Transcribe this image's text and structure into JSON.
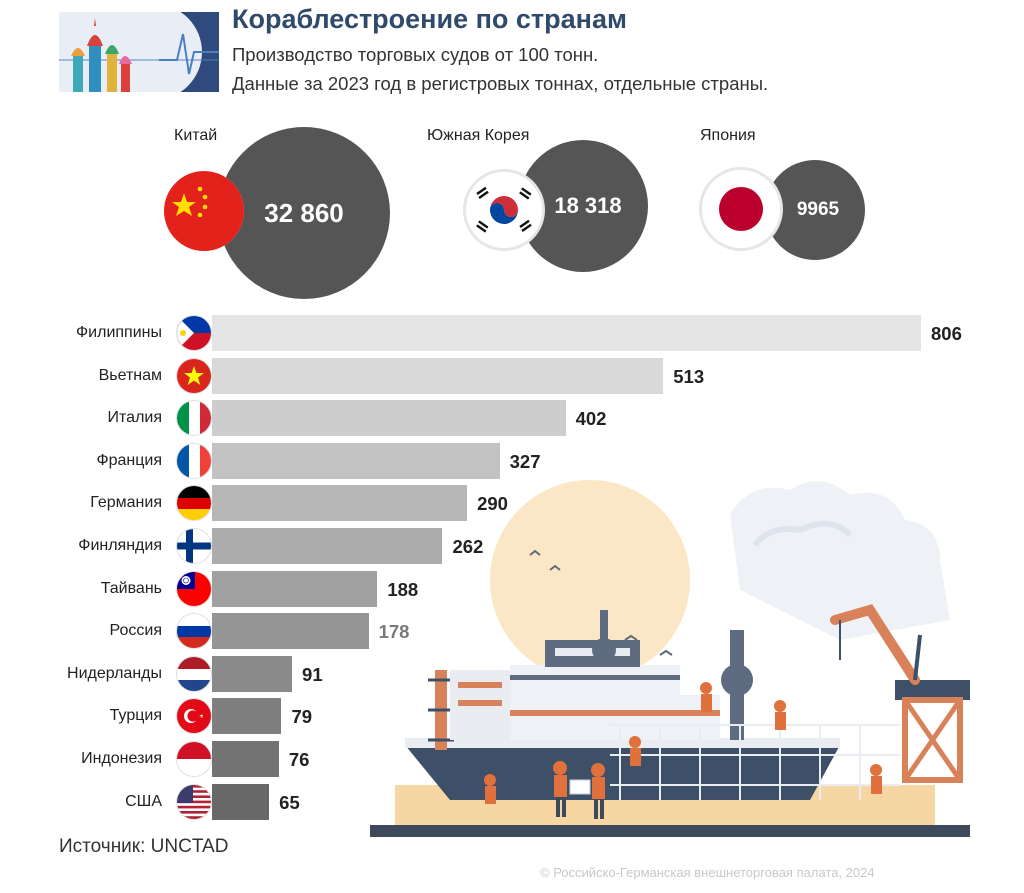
{
  "header": {
    "title": "Кораблестроение по странам",
    "subtitle_line1": "Производство торговых судов от 100 тонн.",
    "subtitle_line2": "Данные за 2023 год в регистровых тоннах, отдельные страны."
  },
  "top_countries": [
    {
      "name": "Китай",
      "value_label": "32 860",
      "flag": "china-flag"
    },
    {
      "name": "Южная Корея",
      "value_label": "18 318",
      "flag": "south-korea-flag"
    },
    {
      "name": "Япония",
      "value_label": "9965",
      "flag": "japan-flag"
    }
  ],
  "chart_data": {
    "type": "bar",
    "orientation": "horizontal",
    "categories": [
      "Филиппины",
      "Вьетнам",
      "Италия",
      "Франция",
      "Германия",
      "Финляндия",
      "Тайвань",
      "Россия",
      "Нидерланды",
      "Турция",
      "Индонезия",
      "США"
    ],
    "values": [
      806,
      513,
      402,
      327,
      290,
      262,
      188,
      178,
      91,
      79,
      76,
      65
    ],
    "value_labels": [
      "806",
      "513",
      "402",
      "327",
      "290",
      "262",
      "188",
      "178",
      "91",
      "79",
      "76",
      "65"
    ],
    "bubbles": {
      "categories": [
        "Китай",
        "Южная Корея",
        "Япония"
      ],
      "values": [
        32860,
        18318,
        9965
      ]
    },
    "grid": false,
    "legend": "none"
  },
  "flags": [
    "philippines-flag",
    "vietnam-flag",
    "italy-flag",
    "france-flag",
    "germany-flag",
    "finland-flag",
    "taiwan-flag",
    "russia-flag",
    "netherlands-flag",
    "turkey-flag",
    "indonesia-flag",
    "usa-flag"
  ],
  "colors": {
    "title": "#2f4a6b",
    "bubble": "#555555",
    "bar_light": "#e4e4e4",
    "bar_dark": "#686868",
    "russia_value": "#7a7a7a"
  },
  "footer": {
    "source": "Источник: UNCTAD",
    "copyright": "© Российско-Германская внешнеторговая палата, 2024"
  }
}
